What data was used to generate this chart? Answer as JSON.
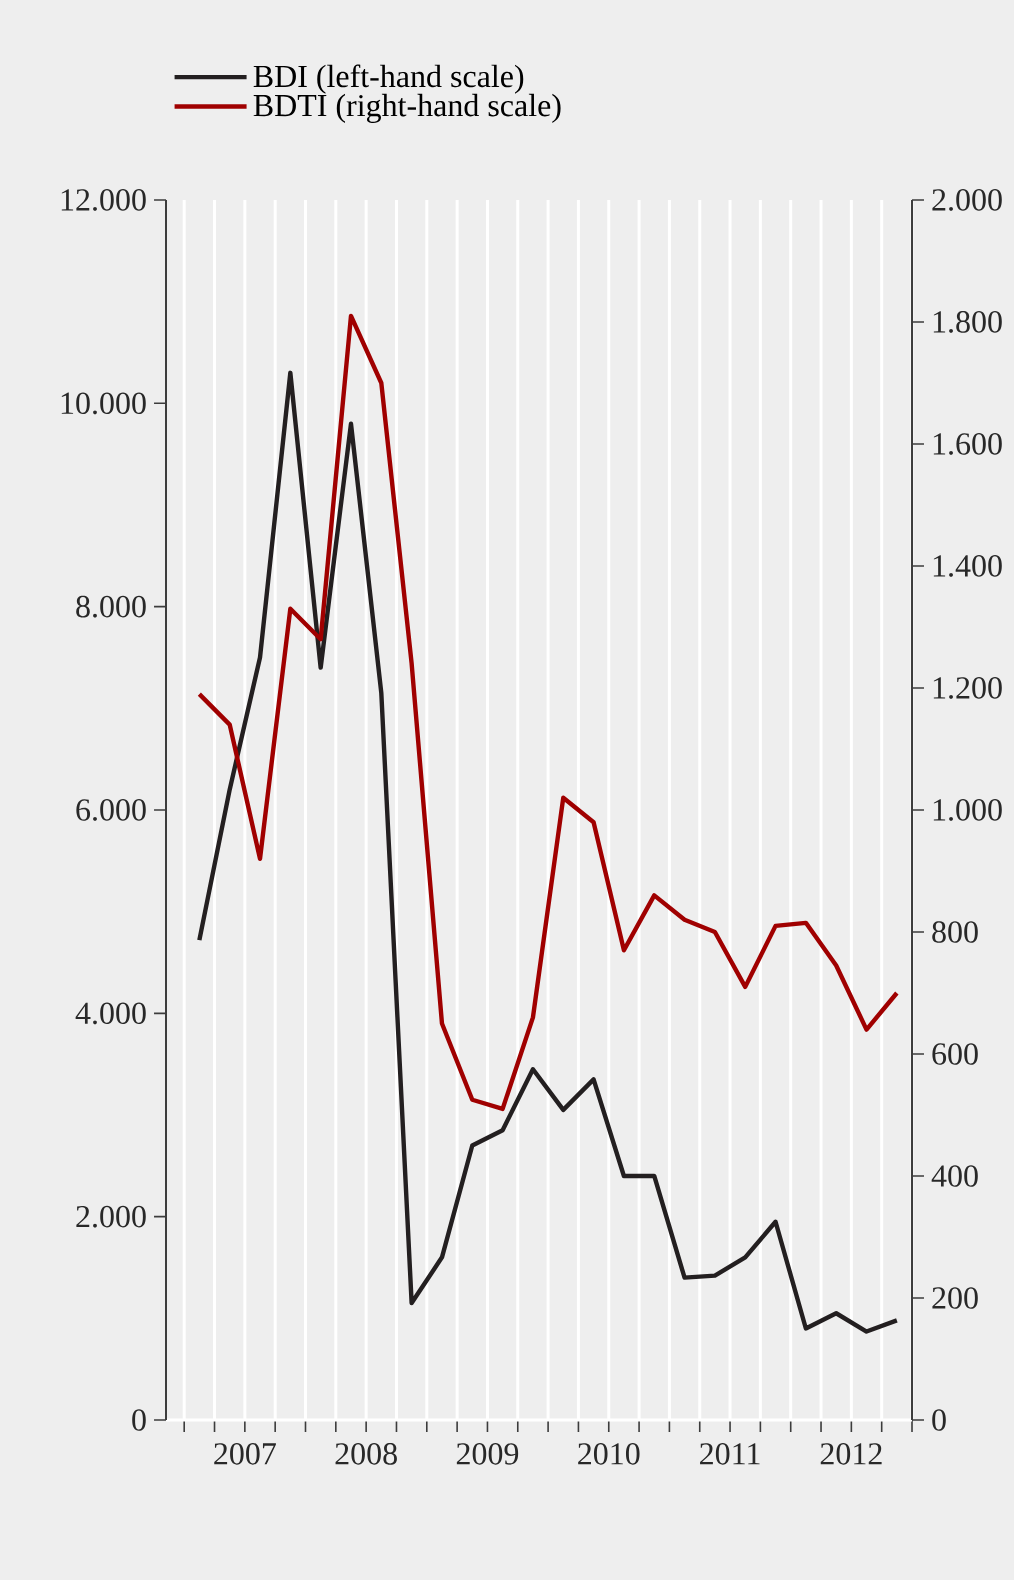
{
  "chart_data": {
    "type": "line",
    "x": [
      2007.125,
      2007.375,
      2007.625,
      2007.875,
      2008.125,
      2008.375,
      2008.625,
      2008.875,
      2009.125,
      2009.375,
      2009.625,
      2009.875,
      2010.125,
      2010.375,
      2010.625,
      2010.875,
      2011.125,
      2011.375,
      2011.625,
      2011.875,
      2012.125,
      2012.375,
      2012.625,
      2012.875
    ],
    "series": [
      {
        "name": "BDI (left-hand scale)",
        "color": "#231f20",
        "values": [
          4720,
          6200,
          7500,
          10300,
          7400,
          9800,
          7150,
          1150,
          1600,
          2700,
          2850,
          3450,
          3050,
          3350,
          2400,
          2400,
          1400,
          1420,
          1600,
          1950,
          900,
          1050,
          870,
          980
        ]
      },
      {
        "name": "BDTI (right-hand scale)",
        "color": "#a00000",
        "axis": "y2",
        "values": [
          1190,
          1140,
          920,
          1330,
          1280,
          1810,
          1700,
          1240,
          650,
          525,
          510,
          660,
          1020,
          980,
          770,
          860,
          820,
          800,
          710,
          810,
          815,
          745,
          640,
          700
        ]
      }
    ],
    "xlim": [
      2006.85,
      2013
    ],
    "xticks": [
      {
        "value": 2007,
        "label": null
      },
      {
        "value": 2007.25,
        "label": null
      },
      {
        "value": 2007.5,
        "label": "2007"
      },
      {
        "value": 2007.75,
        "label": null
      },
      {
        "value": 2008,
        "label": null
      },
      {
        "value": 2008.25,
        "label": null
      },
      {
        "value": 2008.5,
        "label": "2008"
      },
      {
        "value": 2008.75,
        "label": null
      },
      {
        "value": 2009,
        "label": null
      },
      {
        "value": 2009.25,
        "label": null
      },
      {
        "value": 2009.5,
        "label": "2009"
      },
      {
        "value": 2009.75,
        "label": null
      },
      {
        "value": 2010,
        "label": null
      },
      {
        "value": 2010.25,
        "label": null
      },
      {
        "value": 2010.5,
        "label": "2010"
      },
      {
        "value": 2010.75,
        "label": null
      },
      {
        "value": 2011,
        "label": null
      },
      {
        "value": 2011.25,
        "label": null
      },
      {
        "value": 2011.5,
        "label": "2011"
      },
      {
        "value": 2011.75,
        "label": null
      },
      {
        "value": 2012,
        "label": null
      },
      {
        "value": 2012.25,
        "label": null
      },
      {
        "value": 2012.5,
        "label": "2012"
      },
      {
        "value": 2012.75,
        "label": null
      },
      {
        "value": 2013,
        "label": null
      }
    ],
    "ylim": [
      0,
      12000
    ],
    "yticks": [
      0,
      {
        "value": 2000,
        "label": "2.000"
      },
      {
        "value": 4000,
        "label": "4.000"
      },
      {
        "value": 6000,
        "label": "6.000"
      },
      {
        "value": 8000,
        "label": "8.000"
      },
      {
        "value": 10000,
        "label": "10.000"
      },
      {
        "value": 12000,
        "label": "12.000"
      }
    ],
    "y2lim": [
      0,
      2000
    ],
    "y2ticks": [
      0,
      200,
      400,
      600,
      800,
      {
        "value": 1000,
        "label": "1.000"
      },
      {
        "value": 1200,
        "label": "1.200"
      },
      {
        "value": 1400,
        "label": "1.400"
      },
      {
        "value": 1600,
        "label": "1.600"
      },
      {
        "value": 1800,
        "label": "1.800"
      },
      {
        "value": 2000,
        "label": "2.000"
      }
    ],
    "grid": "x",
    "legend": "top left",
    "line_style": "solid"
  }
}
